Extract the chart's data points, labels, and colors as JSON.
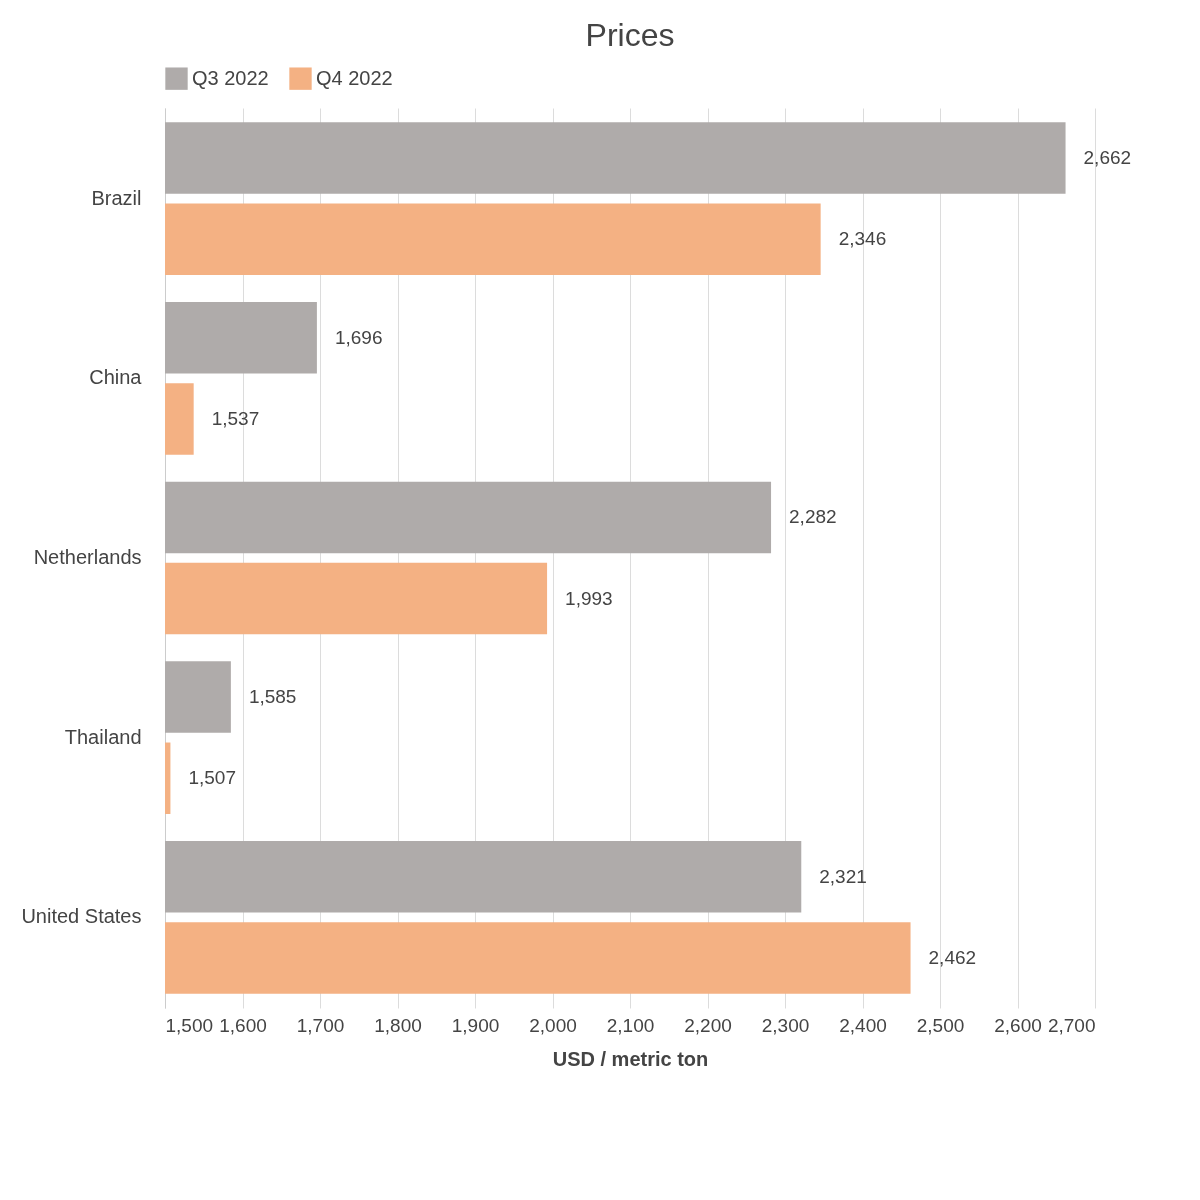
{
  "chart_data": {
    "type": "bar",
    "orientation": "horizontal",
    "title": "Prices",
    "xlabel": "USD / metric ton",
    "categories": [
      "Brazil",
      "China",
      "Netherlands",
      "Thailand",
      "United States"
    ],
    "series": [
      {
        "name": "Q3 2022",
        "color": "#afabaa",
        "values": [
          2662,
          1696,
          2282,
          1585,
          2321
        ],
        "value_labels": [
          "2,662",
          "1,696",
          "2,282",
          "1,585",
          "2,321"
        ]
      },
      {
        "name": "Q4 2022",
        "color": "#f4b183",
        "values": [
          2346,
          1537,
          1993,
          1507,
          2462
        ],
        "value_labels": [
          "2,346",
          "1,537",
          "1,993",
          "1,507",
          "2,462"
        ]
      }
    ],
    "xlim": [
      1500,
      2700
    ],
    "xticks": [
      {
        "value": 1500,
        "label": "1,500"
      },
      {
        "value": 1600,
        "label": "1,600"
      },
      {
        "value": 1700,
        "label": "1,700"
      },
      {
        "value": 1800,
        "label": "1,800"
      },
      {
        "value": 1900,
        "label": "1,900"
      },
      {
        "value": 2000,
        "label": "2,000"
      },
      {
        "value": 2100,
        "label": "2,100"
      },
      {
        "value": 2200,
        "label": "2,200"
      },
      {
        "value": 2300,
        "label": "2,300"
      },
      {
        "value": 2400,
        "label": "2,400"
      },
      {
        "value": 2500,
        "label": "2,500"
      },
      {
        "value": 2600,
        "label": "2,600"
      },
      {
        "value": 2700,
        "label": "2,700"
      }
    ],
    "grid": "x",
    "legend": "top"
  }
}
